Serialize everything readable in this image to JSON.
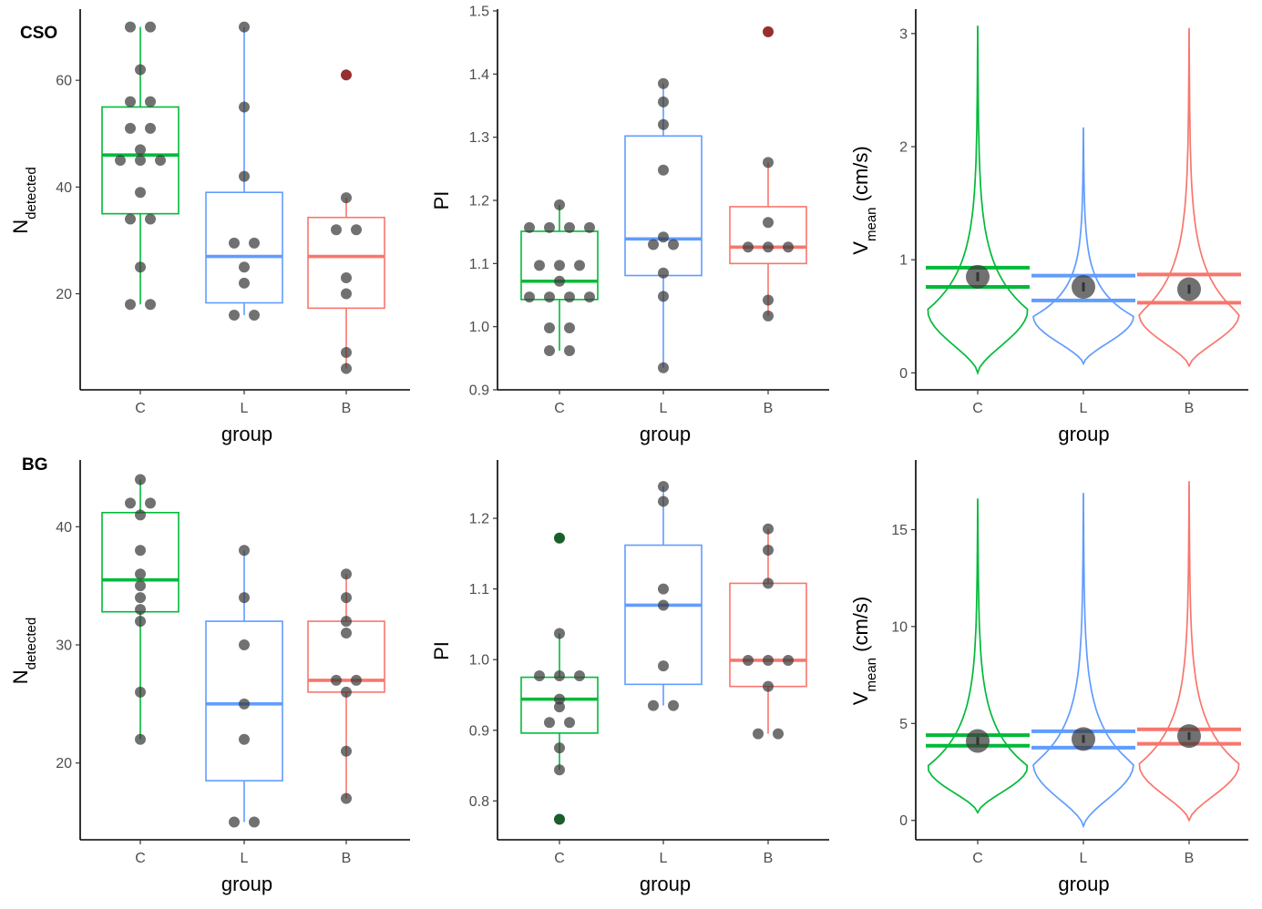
{
  "rows": [
    {
      "tag": "CSO"
    },
    {
      "tag": "BG"
    }
  ],
  "colors": {
    "C": "#00ba38",
    "L": "#619cff",
    "B": "#f8766d",
    "point": "#3a3a3a",
    "outlier_dark": "#8b1a1a",
    "outlier_green": "#004d14"
  },
  "chart_data": [
    {
      "id": "cso-ndetected",
      "type": "box",
      "row": 0,
      "col": 0,
      "xlabel": "group",
      "ylabel_main": "N",
      "ylabel_sub": "detected",
      "ylim": [
        2,
        73
      ],
      "yticks": [
        20,
        40,
        60
      ],
      "categories": [
        "C",
        "L",
        "B"
      ],
      "boxes": [
        {
          "group": "C",
          "q1": 35,
          "median": 46,
          "q3": 55,
          "wlo": 18,
          "whi": 70
        },
        {
          "group": "L",
          "q1": 18.3,
          "median": 27,
          "q3": 39,
          "wlo": 16,
          "whi": 70
        },
        {
          "group": "B",
          "q1": 17.3,
          "median": 27,
          "q3": 34.3,
          "wlo": 6,
          "whi": 38
        }
      ],
      "points": [
        {
          "group": "C",
          "values": [
            70,
            70,
            62,
            56,
            56,
            51,
            51,
            47,
            45,
            45,
            45,
            39,
            34,
            34,
            25,
            18,
            18
          ]
        },
        {
          "group": "L",
          "values": [
            70,
            55,
            42,
            29.5,
            29.5,
            25,
            22,
            16,
            16
          ]
        },
        {
          "group": "B",
          "values": [
            38,
            32,
            32,
            23,
            20,
            9,
            6
          ]
        }
      ],
      "outliers": [
        {
          "group": "B",
          "value": 61
        }
      ]
    },
    {
      "id": "cso-pi",
      "type": "box",
      "row": 0,
      "col": 1,
      "xlabel": "group",
      "ylabel_main": "PI",
      "ylabel_sub": "",
      "ylim": [
        0.9,
        1.5
      ],
      "yticks": [
        0.9,
        1.0,
        1.1,
        1.2,
        1.3,
        1.4,
        1.5
      ],
      "tick_labels": [
        "0.9",
        "1.0",
        "1.1",
        "1.2",
        "1.3",
        "1.4",
        "1.5"
      ],
      "categories": [
        "C",
        "L",
        "B"
      ],
      "boxes": [
        {
          "group": "C",
          "q1": 1.043,
          "median": 1.072,
          "q3": 1.151,
          "wlo": 0.962,
          "whi": 1.193
        },
        {
          "group": "L",
          "q1": 1.081,
          "median": 1.139,
          "q3": 1.302,
          "wlo": 0.935,
          "whi": 1.385
        },
        {
          "group": "B",
          "q1": 1.1,
          "median": 1.126,
          "q3": 1.19,
          "wlo": 1.017,
          "whi": 1.26
        }
      ],
      "points": [
        {
          "group": "C",
          "values": [
            1.193,
            1.157,
            1.157,
            1.157,
            1.157,
            1.097,
            1.097,
            1.097,
            1.072,
            1.047,
            1.047,
            1.047,
            1.047,
            0.998,
            0.998,
            0.962,
            0.962
          ]
        },
        {
          "group": "L",
          "values": [
            1.385,
            1.356,
            1.32,
            1.248,
            1.142,
            1.13,
            1.13,
            1.085,
            1.048,
            0.935
          ]
        },
        {
          "group": "B",
          "values": [
            1.26,
            1.165,
            1.126,
            1.126,
            1.126,
            1.042,
            1.017
          ]
        }
      ],
      "outliers": [
        {
          "group": "B",
          "value": 1.467
        }
      ]
    },
    {
      "id": "cso-vmean",
      "type": "violin",
      "row": 0,
      "col": 2,
      "xlabel": "group",
      "ylabel_main": "V",
      "ylabel_sub": "mean",
      "ylabel_unit": " (cm/s)",
      "ylim": [
        -0.15,
        3.2
      ],
      "yticks": [
        0,
        1,
        2,
        3
      ],
      "categories": [
        "C",
        "L",
        "B"
      ],
      "violins": [
        {
          "group": "C",
          "ymin": 0.0,
          "ymax": 3.07,
          "mode": 0.56,
          "hw_max": 55,
          "lines": [
            0.76,
            0.93
          ],
          "mean": 0.85,
          "se": 0.04
        },
        {
          "group": "L",
          "ymin": 0.08,
          "ymax": 2.17,
          "mode": 0.5,
          "hw_max": 55,
          "lines": [
            0.64,
            0.86
          ],
          "mean": 0.76,
          "se": 0.04
        },
        {
          "group": "B",
          "ymin": 0.06,
          "ymax": 3.05,
          "mode": 0.52,
          "hw_max": 55,
          "lines": [
            0.62,
            0.87
          ],
          "mean": 0.74,
          "se": 0.04
        }
      ]
    },
    {
      "id": "bg-ndetected",
      "type": "box",
      "row": 1,
      "col": 0,
      "xlabel": "group",
      "ylabel_main": "N",
      "ylabel_sub": "detected",
      "ylim": [
        13.5,
        45.5
      ],
      "yticks": [
        20,
        30,
        40
      ],
      "categories": [
        "C",
        "L",
        "B"
      ],
      "boxes": [
        {
          "group": "C",
          "q1": 32.8,
          "median": 35.5,
          "q3": 41.2,
          "wlo": 22,
          "whi": 44
        },
        {
          "group": "L",
          "q1": 18.5,
          "median": 25,
          "q3": 32,
          "wlo": 15,
          "whi": 38
        },
        {
          "group": "B",
          "q1": 26,
          "median": 27,
          "q3": 32,
          "wlo": 17,
          "whi": 36
        }
      ],
      "points": [
        {
          "group": "C",
          "values": [
            44,
            42,
            42,
            41,
            38,
            36,
            35,
            34,
            33,
            32,
            26,
            22
          ]
        },
        {
          "group": "L",
          "values": [
            38,
            34,
            30,
            25,
            22,
            15,
            15
          ]
        },
        {
          "group": "B",
          "values": [
            36,
            34,
            32,
            31,
            27,
            27,
            26,
            21,
            17
          ]
        }
      ],
      "outliers": []
    },
    {
      "id": "bg-pi",
      "type": "box",
      "row": 1,
      "col": 1,
      "xlabel": "group",
      "ylabel_main": "PI",
      "ylabel_sub": "",
      "ylim": [
        0.745,
        1.28
      ],
      "yticks": [
        0.8,
        0.9,
        1.0,
        1.1,
        1.2
      ],
      "tick_labels": [
        "0.8",
        "0.9",
        "1.0",
        "1.1",
        "1.2"
      ],
      "categories": [
        "C",
        "L",
        "B"
      ],
      "boxes": [
        {
          "group": "C",
          "q1": 0.896,
          "median": 0.944,
          "q3": 0.975,
          "wlo": 0.844,
          "whi": 1.037
        },
        {
          "group": "L",
          "q1": 0.965,
          "median": 1.077,
          "q3": 1.162,
          "wlo": 0.935,
          "whi": 1.245
        },
        {
          "group": "B",
          "q1": 0.962,
          "median": 0.999,
          "q3": 1.108,
          "wlo": 0.895,
          "whi": 1.185
        }
      ],
      "points": [
        {
          "group": "C",
          "values": [
            1.037,
            0.977,
            0.977,
            0.977,
            0.944,
            0.933,
            0.911,
            0.911,
            0.875,
            0.844
          ]
        },
        {
          "group": "L",
          "values": [
            1.245,
            1.224,
            1.1,
            1.077,
            0.991,
            0.935,
            0.935
          ]
        },
        {
          "group": "B",
          "values": [
            1.185,
            1.155,
            1.108,
            0.999,
            0.999,
            0.999,
            0.962,
            0.895,
            0.895
          ]
        }
      ],
      "outliers": [
        {
          "group": "C",
          "value": 1.172
        },
        {
          "group": "C",
          "value": 0.774
        }
      ]
    },
    {
      "id": "bg-vmean",
      "type": "violin",
      "row": 1,
      "col": 2,
      "xlabel": "group",
      "ylabel_main": "V",
      "ylabel_sub": "mean",
      "ylabel_unit": " (cm/s)",
      "ylim": [
        -1.0,
        18.5
      ],
      "yticks": [
        0,
        5,
        10,
        15
      ],
      "categories": [
        "C",
        "L",
        "B"
      ],
      "violins": [
        {
          "group": "C",
          "ymin": 0.4,
          "ymax": 16.6,
          "mode": 2.8,
          "hw_max": 55,
          "lines": [
            3.85,
            4.4
          ],
          "mean": 4.1,
          "se": 0.2
        },
        {
          "group": "L",
          "ymin": -0.3,
          "ymax": 16.9,
          "mode": 2.9,
          "hw_max": 55,
          "lines": [
            3.75,
            4.6
          ],
          "mean": 4.2,
          "se": 0.2
        },
        {
          "group": "B",
          "ymin": 0.0,
          "ymax": 17.5,
          "mode": 2.9,
          "hw_max": 55,
          "lines": [
            3.95,
            4.7
          ],
          "mean": 4.35,
          "se": 0.2
        }
      ]
    }
  ]
}
